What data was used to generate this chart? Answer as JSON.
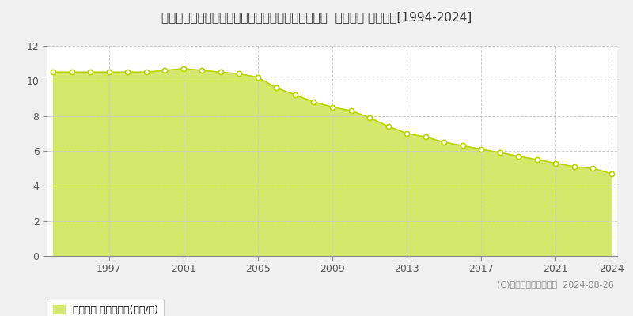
{
  "title": "鳥取県東伯郡三朝町大字山田字下前河原７２３番３  地価公示 地価推移[1994-2024]",
  "years": [
    1994,
    1995,
    1996,
    1997,
    1998,
    1999,
    2000,
    2001,
    2002,
    2003,
    2004,
    2005,
    2006,
    2007,
    2008,
    2009,
    2010,
    2011,
    2012,
    2013,
    2014,
    2015,
    2016,
    2017,
    2018,
    2019,
    2020,
    2021,
    2022,
    2023,
    2024
  ],
  "values": [
    10.5,
    10.5,
    10.5,
    10.5,
    10.5,
    10.5,
    10.6,
    10.7,
    10.6,
    10.5,
    10.4,
    10.2,
    9.6,
    9.2,
    8.8,
    8.5,
    8.3,
    7.9,
    7.4,
    7.0,
    6.8,
    6.5,
    6.3,
    6.1,
    5.9,
    5.7,
    5.5,
    5.3,
    5.1,
    5.0,
    4.7
  ],
  "fill_color": "#d4e96b",
  "line_color": "#b8d400",
  "marker_facecolor": "#ffffff",
  "marker_edgecolor": "#b8d400",
  "background_color": "#f0f0f0",
  "plot_bg_color": "#ffffff",
  "grid_color": "#cccccc",
  "ylim": [
    0,
    12
  ],
  "yticks": [
    0,
    2,
    4,
    6,
    8,
    10,
    12
  ],
  "xticks": [
    1997,
    2001,
    2005,
    2009,
    2013,
    2017,
    2021,
    2024
  ],
  "legend_label": "地価公示 平均坪単価(万円/坪)",
  "copyright_text": "(C)土地価格ドットコム  2024-08-26",
  "title_fontsize": 11,
  "axis_fontsize": 9,
  "legend_fontsize": 9,
  "copyright_fontsize": 8
}
